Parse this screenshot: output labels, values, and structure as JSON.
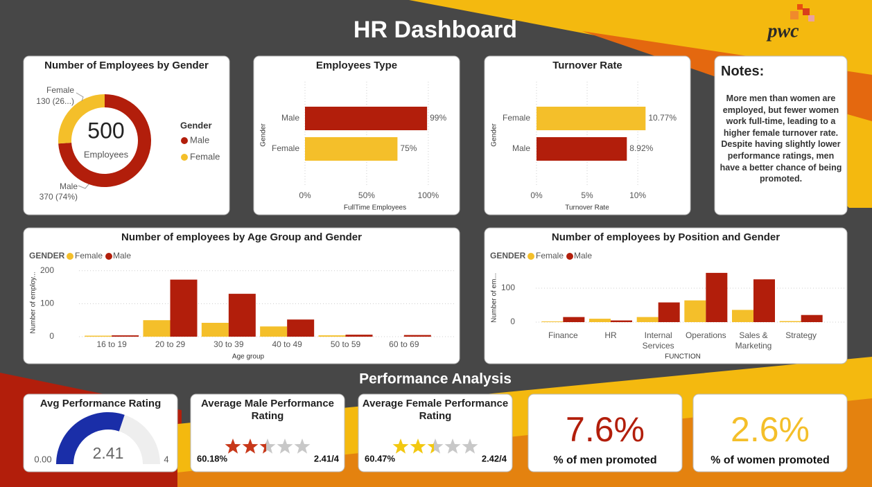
{
  "header": {
    "title": "HR Dashboard",
    "logo": "pwc"
  },
  "chart_data": [
    {
      "type": "donut",
      "title": "Number of Employees by Gender",
      "categories": [
        "Male",
        "Female"
      ],
      "values": [
        370,
        130
      ],
      "value_labels": [
        "370 (74%)",
        "130 (26...)"
      ],
      "colors": [
        "#b21e0b",
        "#f4bf2a"
      ],
      "total": 500,
      "total_label": "Employees",
      "legend_title": "Gender"
    },
    {
      "type": "hbar",
      "title": "Employees Type",
      "categories": [
        "Male",
        "Female"
      ],
      "values": [
        99,
        75
      ],
      "value_labels": [
        "99%",
        "75%"
      ],
      "colors": [
        "#b21e0b",
        "#f4bf2a"
      ],
      "xlim": [
        0,
        104
      ],
      "xticks": [
        {
          "value": 0,
          "label": "0%"
        },
        {
          "value": 50,
          "label": "50%"
        },
        {
          "value": 100,
          "label": "100%"
        }
      ],
      "xlabel": "FullTime Employees",
      "ylabel": "Gender",
      "grid": true
    },
    {
      "type": "hbar",
      "title": "Turnover Rate",
      "categories": [
        "Female",
        "Male"
      ],
      "values": [
        10.77,
        8.92
      ],
      "value_labels": [
        "10.77%",
        "8.92%"
      ],
      "colors": [
        "#f4bf2a",
        "#b21e0b"
      ],
      "xlim": [
        0,
        11.5
      ],
      "xticks": [
        {
          "value": 0,
          "label": "0%"
        },
        {
          "value": 5,
          "label": "5%"
        },
        {
          "value": 10,
          "label": "10%"
        }
      ],
      "xlabel": "Turnover Rate",
      "ylabel": "Gender",
      "grid": true
    },
    {
      "type": "grouped_bar",
      "title": "Number of employees by Age Group and Gender",
      "legend_title": "GENDER",
      "categories": [
        "16 to 19",
        "20 to 29",
        "30 to 39",
        "40 to 49",
        "50 to 59",
        "60 to 69"
      ],
      "series": [
        {
          "name": "Female",
          "color": "#f4bf2a",
          "values": [
            3,
            50,
            42,
            31,
            4,
            0
          ]
        },
        {
          "name": "Male",
          "color": "#b21e0b",
          "values": [
            4,
            173,
            130,
            52,
            6,
            5
          ]
        }
      ],
      "ylim": [
        0,
        210
      ],
      "yticks": [
        0,
        100,
        200
      ],
      "xlabel": "Age group",
      "ylabel": "Number of employ...",
      "grid": true
    },
    {
      "type": "grouped_bar",
      "title": "Number of employees by Position and Gender",
      "legend_title": "GENDER",
      "categories": [
        "Finance",
        "HR",
        "Internal Services",
        "Operations",
        "Sales & Marketing",
        "Strategy"
      ],
      "series": [
        {
          "name": "Female",
          "color": "#f4bf2a",
          "values": [
            2,
            10,
            15,
            64,
            36,
            3
          ]
        },
        {
          "name": "Male",
          "color": "#b21e0b",
          "values": [
            15,
            5,
            58,
            145,
            126,
            21
          ]
        }
      ],
      "ylim": [
        0,
        155
      ],
      "yticks": [
        0,
        100
      ],
      "xlabel": "FUNCTION",
      "ylabel": "Number of em...",
      "grid": true
    }
  ],
  "notes": {
    "title": "Notes:",
    "text": "More men than women are employed, but fewer women work full-time, leading to a higher female turnover rate. Despite having slightly lower performance ratings, men have a better chance of being promoted."
  },
  "section_title": "Performance Analysis",
  "performance": {
    "gauge": {
      "type": "gauge",
      "title": "Avg Performance Rating",
      "value": 2.41,
      "min": {
        "value": 0,
        "label": "0.00"
      },
      "max": 4,
      "color": "#1a2ea8"
    },
    "ratings": [
      {
        "title": "Average Male Performance Rating",
        "percent": 60.18,
        "percent_label": "60.18%",
        "rating": 2.41,
        "rating_label": "2.41/4",
        "color": "#c8381a"
      },
      {
        "title": "Average Female Performance Rating",
        "percent": 60.47,
        "percent_label": "60.47%",
        "rating": 2.42,
        "rating_label": "2.42/4",
        "color": "#f2c811"
      }
    ],
    "kpis": [
      {
        "value": 7.6,
        "value_label": "7.6%",
        "label": "% of men promoted",
        "color": "#b21e0b"
      },
      {
        "value": 2.6,
        "value_label": "2.6%",
        "label": "% of women promoted",
        "color": "#f4bf2a"
      }
    ]
  }
}
